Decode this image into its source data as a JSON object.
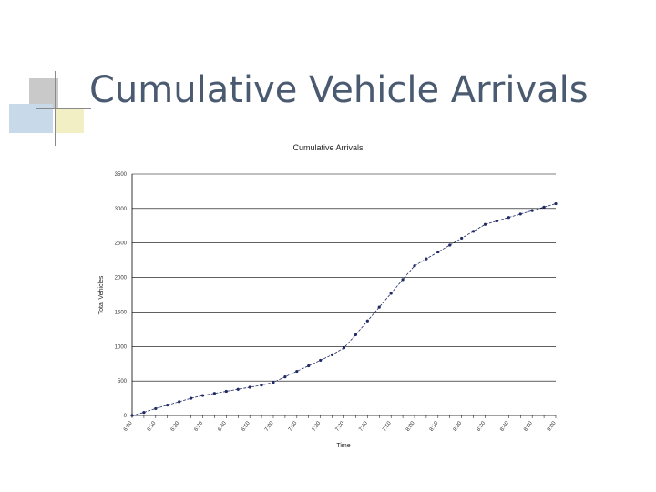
{
  "slide": {
    "title": "Cumulative Vehicle Arrivals"
  },
  "colors": {
    "title": "#4a5a70",
    "series": "#1f2a66",
    "grid": "#000000"
  },
  "chart_data": {
    "type": "line",
    "title": "Cumulative Arrivals",
    "xlabel": "Time",
    "ylabel": "Total Vehicles",
    "ylim": [
      0,
      3500
    ],
    "yticks": [
      0,
      500,
      1000,
      1500,
      2000,
      2500,
      3000,
      3500
    ],
    "grid": "horizontal",
    "legend": "none",
    "categories": [
      "6:00",
      "6:05",
      "6:10",
      "6:15",
      "6:20",
      "6:25",
      "6:30",
      "6:35",
      "6:40",
      "6:45",
      "6:50",
      "6:55",
      "7:00",
      "7:05",
      "7:10",
      "7:15",
      "7:20",
      "7:25",
      "7:30",
      "7:35",
      "7:40",
      "7:45",
      "7:50",
      "7:55",
      "8:00",
      "8:05",
      "8:10",
      "8:15",
      "8:20",
      "8:25",
      "8:30",
      "8:35",
      "8:40",
      "8:45",
      "8:50",
      "8:55",
      "9:00"
    ],
    "xtick_labels": [
      "6:00",
      "6:10",
      "6:20",
      "6:30",
      "6:40",
      "6:50",
      "7:00",
      "7:10",
      "7:20",
      "7:30",
      "7:40",
      "7:50",
      "8:00",
      "8:10",
      "8:20",
      "8:30",
      "8:40",
      "8:50",
      "9:00"
    ],
    "series": [
      {
        "values": [
          0,
          45,
          100,
          150,
          200,
          250,
          290,
          320,
          350,
          380,
          410,
          440,
          480,
          560,
          640,
          720,
          800,
          880,
          980,
          1170,
          1370,
          1570,
          1770,
          1970,
          2170,
          2270,
          2370,
          2470,
          2570,
          2670,
          2770,
          2820,
          2870,
          2920,
          2970,
          3020,
          3070
        ]
      }
    ]
  }
}
